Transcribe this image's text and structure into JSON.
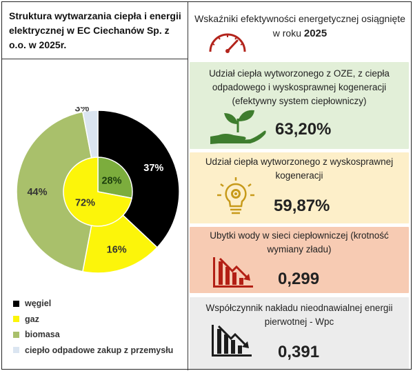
{
  "left_title": "Struktura wytwarzania ciepła i energii elektrycznej w EC Ciechanów Sp. z o.o. w 2025r.",
  "right_title": {
    "line1": "Wskaźniki efektywności energetycznej osiągnięte",
    "line2": "w roku",
    "year": "2025"
  },
  "chart_data": {
    "type": "pie",
    "title": "",
    "outer": {
      "slices": [
        {
          "label": "węgiel",
          "value": 37,
          "text": "37%",
          "color": "#000000"
        },
        {
          "label": "gaz",
          "value": 16,
          "text": "16%",
          "color": "#fcf50a"
        },
        {
          "label": "biomasa",
          "value": 44,
          "text": "44%",
          "color": "#a9c06b"
        },
        {
          "label": "ciepło odpadowe zakup z przemysłu",
          "value": 3,
          "text": "3%",
          "color": "#dbe5f1"
        }
      ]
    },
    "inner": {
      "slices": [
        {
          "value": 28,
          "text": "28%",
          "color": "#7cad3d"
        },
        {
          "value": 72,
          "text": "72%",
          "color": "#fcf50a"
        }
      ]
    },
    "legend": [
      "węgiel",
      "gaz",
      "biomasa",
      "ciepło odpadowe zakup z przemysłu"
    ],
    "legend_position": "bottom-left"
  },
  "indicators": [
    {
      "text": "Udział ciepła wytworzonego z OZE, z ciepła odpadowego i wyskosprawnej kogeneracji (efektywny system ciepłowniczy)",
      "value": "63,20%",
      "icon": "plant-hand-icon",
      "icon_color": "#3e7d2e"
    },
    {
      "text": "Udział ciepła wytworzonego z wyskosprawnej kogeneracji",
      "value": "59,87%",
      "icon": "lightbulb-gear-icon",
      "icon_color": "#c79a1a"
    },
    {
      "text": "Ubytki wody w sieci ciepłowniczej (krotność wymiany zładu)",
      "value": "0,299",
      "icon": "falling-chart-icon",
      "icon_color": "#b31f14"
    },
    {
      "text": "Współczynnik nakładu nieodnawialnej energii pierwotnej - Wpc",
      "value": "0,391",
      "icon": "falling-chart-icon",
      "icon_color": "#1c1c1c"
    }
  ],
  "gauge_icon": {
    "icon": "speedometer-icon",
    "color": "#b3241c"
  }
}
